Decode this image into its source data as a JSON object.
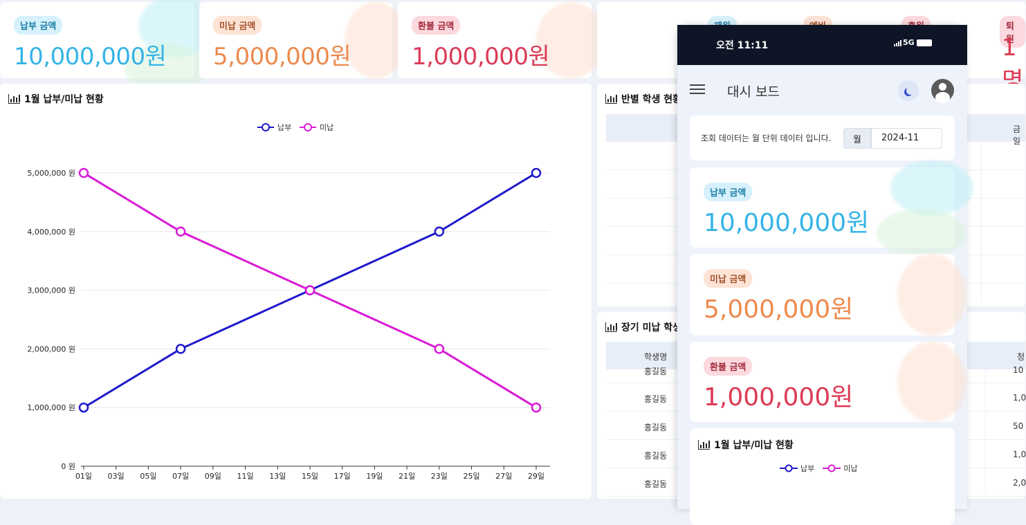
{
  "summary_cards": [
    {
      "label": "납부 금액",
      "value": "10,000,000원"
    },
    {
      "label": "미납 금액",
      "value": "5,000,000원"
    },
    {
      "label": "환불 금액",
      "value": "1,000,000원"
    }
  ],
  "status_card": {
    "labels": [
      "재원",
      "예비",
      "휴원",
      "퇴원"
    ],
    "value": "1명"
  },
  "left_panel": {
    "title": "1월 납부/미납 현황"
  },
  "class_panel": {
    "title": "반별 학생 현황",
    "col_right": "금일"
  },
  "overdue_panel": {
    "title": "장기 미납 학생",
    "col_name": "학생명",
    "col_right": "청",
    "rows": [
      {
        "name": "홍길동",
        "amount": "10"
      },
      {
        "name": "홍길동",
        "amount": "1,0"
      },
      {
        "name": "홍길동",
        "amount": "50"
      },
      {
        "name": "홍길동",
        "amount": "1,0"
      },
      {
        "name": "홍길동",
        "amount": "2,0"
      }
    ]
  },
  "chart_data": {
    "type": "line",
    "title": "1월 납부/미납 현황",
    "x": [
      "01일",
      "07일",
      "15일",
      "23일",
      "29일"
    ],
    "xticks": [
      "01일",
      "03일",
      "05일",
      "07일",
      "09일",
      "11일",
      "13일",
      "15일",
      "17일",
      "19일",
      "21일",
      "23일",
      "25일",
      "27일",
      "29일"
    ],
    "yticks": [
      "0 원",
      "1,000,000 원",
      "2,000,000 원",
      "3,000,000 원",
      "4,000,000 원",
      "5,000,000 원"
    ],
    "ylim": [
      0,
      5000000
    ],
    "legend_position": "top-center",
    "series": [
      {
        "name": "납부",
        "color": "#1f18cc",
        "days": [
          1,
          7,
          15,
          23,
          29
        ],
        "values": [
          1000000,
          2000000,
          3000000,
          4000000,
          5000000
        ]
      },
      {
        "name": "미납",
        "color": "#d91ad6",
        "days": [
          1,
          7,
          15,
          23,
          29
        ],
        "values": [
          5000000,
          4000000,
          3000000,
          2000000,
          1000000
        ]
      }
    ]
  },
  "phone": {
    "time": "오전 11:11",
    "network": "5G",
    "app_title": "대시 보드",
    "filter_text": "조회 데이터는 월 단위 데이터 입니다.",
    "month_label": "월",
    "month_value": "2024-11",
    "cards": [
      {
        "label": "납부 금액",
        "value": "10,000,000원"
      },
      {
        "label": "미납 금액",
        "value": "5,000,000원"
      },
      {
        "label": "환불 금액",
        "value": "1,000,000원"
      }
    ],
    "chart_title": "1월 납부/미납 현황",
    "legend": [
      "납부",
      "미납"
    ]
  }
}
